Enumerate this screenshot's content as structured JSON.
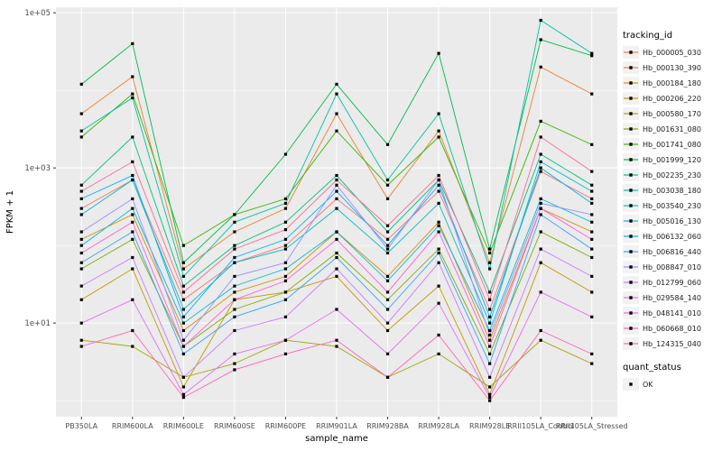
{
  "figure": {
    "background": "#FFFFFF",
    "panel_bg": "#EBEBEB",
    "grid_color": "#FFFFFF",
    "tick_label_color": "#4d4d4d",
    "marker_color": "#000000"
  },
  "chart_data": {
    "type": "line",
    "title": "",
    "xlabel": "sample_name",
    "ylabel": "FPKM + 1",
    "y_scale": "log10",
    "ylim": [
      0.62,
      118000
    ],
    "grid": true,
    "legend_position": "right",
    "y_major_ticks": [
      {
        "label": "1e+05",
        "value": 100000
      },
      {
        "label": "1e+03",
        "value": 1000
      },
      {
        "label": "1e+01",
        "value": 10
      }
    ],
    "y_minor_ticks": [
      1,
      100,
      10000
    ],
    "categories": [
      "PB350LA",
      "RRIM600LA",
      "RRIM600LE",
      "RRIM600SE",
      "RRIM600PE",
      "RRIM901LA",
      "RRIM928BA",
      "RRIM928LA",
      "RRIM928LE",
      "RRII105LA_Control",
      "RRII105LA_Stressed"
    ],
    "series": [
      {
        "name": "Hb_000005_030",
        "color": "#F8766D",
        "values": [
          300,
          700,
          20,
          60,
          100,
          400,
          120,
          500,
          15,
          900,
          400
        ]
      },
      {
        "name": "Hb_000130_390",
        "color": "#EA8331",
        "values": [
          5000,
          15000,
          50,
          150,
          300,
          5000,
          400,
          3000,
          60,
          20000,
          9000
        ]
      },
      {
        "name": "Hb_000184_180",
        "color": "#D89000",
        "values": [
          120,
          250,
          8,
          25,
          40,
          150,
          40,
          200,
          6,
          300,
          150
        ]
      },
      {
        "name": "Hb_000206_220",
        "color": "#C09B00",
        "values": [
          20,
          50,
          1.5,
          20,
          25,
          40,
          8,
          30,
          1.2,
          60,
          25
        ]
      },
      {
        "name": "Hb_000580_170",
        "color": "#A3A500",
        "values": [
          6,
          5,
          2,
          3,
          6,
          5,
          2,
          4,
          1.5,
          6,
          3
        ]
      },
      {
        "name": "Hb_001631_080",
        "color": "#7CAE00",
        "values": [
          50,
          120,
          5,
          15,
          25,
          80,
          20,
          90,
          4,
          150,
          70
        ]
      },
      {
        "name": "Hb_001741_080",
        "color": "#39B600",
        "values": [
          2500,
          9000,
          100,
          250,
          400,
          3000,
          600,
          2500,
          80,
          4000,
          2000
        ]
      },
      {
        "name": "Hb_001999_120",
        "color": "#00BB4E",
        "values": [
          12000,
          40000,
          60,
          250,
          1500,
          12000,
          2000,
          30000,
          90,
          45000,
          28000
        ]
      },
      {
        "name": "Hb_002235_230",
        "color": "#00BF7D",
        "values": [
          600,
          2500,
          30,
          100,
          200,
          800,
          150,
          700,
          25,
          1500,
          600
        ]
      },
      {
        "name": "Hb_003038_180",
        "color": "#00C1A3",
        "values": [
          3000,
          8000,
          40,
          200,
          350,
          9000,
          700,
          5000,
          50,
          80000,
          30000
        ]
      },
      {
        "name": "Hb_003540_230",
        "color": "#00BFC4",
        "values": [
          250,
          700,
          15,
          60,
          90,
          300,
          80,
          350,
          10,
          1200,
          500
        ]
      },
      {
        "name": "Hb_005016_130",
        "color": "#00BAE0",
        "values": [
          100,
          300,
          10,
          30,
          50,
          150,
          35,
          180,
          8,
          400,
          200
        ]
      },
      {
        "name": "Hb_006132_060",
        "color": "#00B0F6",
        "values": [
          400,
          800,
          12,
          70,
          120,
          500,
          100,
          600,
          12,
          1000,
          350
        ]
      },
      {
        "name": "Hb_006816_440",
        "color": "#35A2FF",
        "values": [
          60,
          150,
          4,
          12,
          20,
          70,
          15,
          80,
          3,
          250,
          90
        ]
      },
      {
        "name": "Hb_008847_010",
        "color": "#9590FF",
        "values": [
          150,
          400,
          6,
          40,
          60,
          600,
          90,
          700,
          7,
          350,
          250
        ]
      },
      {
        "name": "Hb_012799_060",
        "color": "#C77CFF",
        "values": [
          30,
          70,
          2,
          8,
          12,
          50,
          10,
          60,
          2,
          90,
          40
        ]
      },
      {
        "name": "Hb_029584_140",
        "color": "#E76BF3",
        "values": [
          10,
          20,
          1.2,
          4,
          6,
          15,
          4,
          18,
          1.1,
          25,
          12
        ]
      },
      {
        "name": "Hb_048141_010",
        "color": "#FA62DB",
        "values": [
          80,
          200,
          5,
          20,
          35,
          120,
          25,
          150,
          5,
          300,
          120
        ]
      },
      {
        "name": "Hb_060668_010",
        "color": "#FF62BC",
        "values": [
          5,
          8,
          1.1,
          2.5,
          4,
          6,
          2,
          7,
          1,
          8,
          4
        ]
      },
      {
        "name": "Hb_124315_040",
        "color": "#FF6A98",
        "values": [
          500,
          1200,
          25,
          90,
          160,
          700,
          180,
          800,
          20,
          2500,
          900
        ]
      }
    ],
    "marker": {
      "shape": "square",
      "color": "#000000"
    },
    "legends": {
      "tracking": {
        "title": "tracking_id"
      },
      "quant": {
        "title": "quant_status",
        "items": [
          "OK"
        ]
      }
    }
  }
}
